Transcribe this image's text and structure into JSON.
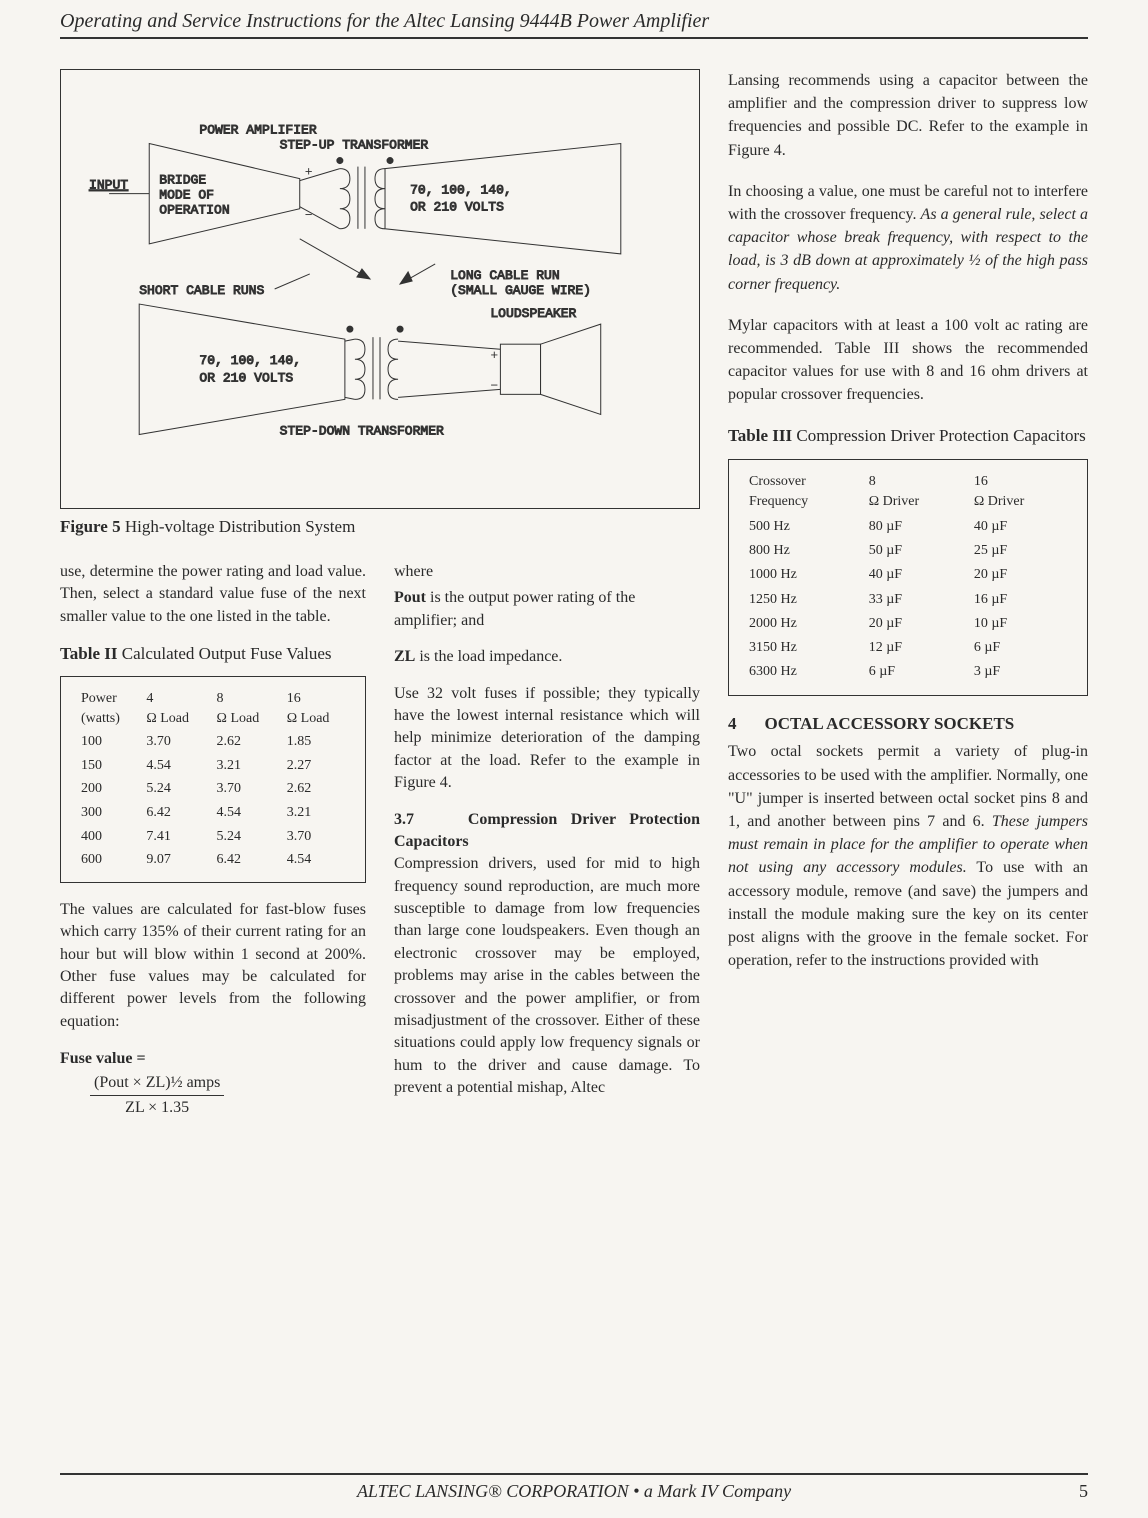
{
  "header": {
    "title": "Operating and Service Instructions for the Altec Lansing 9444B Power Amplifier"
  },
  "figure5": {
    "caption_num": "Figure 5",
    "caption_text": "High-voltage Distribution System",
    "labels": {
      "power_amplifier": "POWER AMPLIFIER",
      "step_up": "STEP-UP TRANSFORMER",
      "input": "INPUT",
      "bridge_mode": "BRIDGE MODE OF OPERATION",
      "volts_line": "70, 100, 140, OR 210 VOLTS",
      "short_cable": "SHORT CABLE RUNS",
      "long_cable": "LONG CABLE RUN (SMALL GAUGE WIRE)",
      "loudspeaker": "LOUDSPEAKER",
      "step_down": "STEP-DOWN TRANSFORMER",
      "plus": "+",
      "minus": "−"
    }
  },
  "col_left_top": {
    "p1": "use, determine the power rating and load value. Then, select a standard value fuse of the next smaller value to the one listed in the table."
  },
  "table2": {
    "title_num": "Table II",
    "title_text": "Calculated Output Fuse Values",
    "columns": [
      "Power (watts)",
      "4 Ω Load",
      "8 Ω Load",
      "16 Ω Load"
    ],
    "rows": [
      [
        "100",
        "3.70",
        "2.62",
        "1.85"
      ],
      [
        "150",
        "4.54",
        "3.21",
        "2.27"
      ],
      [
        "200",
        "5.24",
        "3.70",
        "2.62"
      ],
      [
        "300",
        "6.42",
        "4.54",
        "3.21"
      ],
      [
        "400",
        "7.41",
        "5.24",
        "3.70"
      ],
      [
        "600",
        "9.07",
        "6.42",
        "4.54"
      ]
    ]
  },
  "col_left_bot": {
    "p2": "The values are calculated for fast-blow fuses which carry 135% of their current rating for an hour but will blow within 1 second at 200%. Other fuse values may be calculated for different power levels from the following equation:",
    "eq_label": "Fuse value =",
    "eq_num": "(Pout × ZL)½ amps",
    "eq_den": "ZL × 1.35"
  },
  "col_mid": {
    "where": "where",
    "pout_def": "Pout is the output power rating of the amplifier; and",
    "zl_def": "ZL is the load impedance.",
    "p_fuses": "Use 32 volt fuses if possible; they typically have the lowest internal resistance which will help minimize deterioration of the damping factor at the load. Refer to the example in Figure 4.",
    "sec37_num": "3.7",
    "sec37_title": "Compression Driver Protection Capacitors",
    "sec37_body": "Compression drivers, used for mid to high frequency sound reproduction, are much more susceptible to damage from low frequencies than large cone loudspeakers. Even though an electronic crossover may be employed, problems may arise in the cables between the crossover and the power amplifier, or from misadjustment of the crossover. Either of these situations could apply low frequency signals or hum to the driver and cause damage. To prevent a potential mishap, Altec"
  },
  "right": {
    "p1": "Lansing recommends using a capacitor between the amplifier and the compression driver to suppress low frequencies and possible DC. Refer to the example in Figure 4.",
    "p2a": "In choosing a value, one must be careful not to interfere with the crossover frequency. ",
    "p2b_italic": "As a general rule, select a capacitor whose break frequency, with respect to the load, is 3 dB down at approximately ½ of the high pass corner frequency.",
    "p3": "Mylar capacitors with at least a 100 volt ac rating are recommended. Table III shows the recommended capacitor values for use with 8 and 16 ohm drivers at popular crossover frequencies.",
    "sec4_num": "4",
    "sec4_title": "OCTAL ACCESSORY SOCKETS",
    "sec4_body_a": "Two octal sockets permit a variety of plug-in accessories to be used with the amplifier. Normally, one \"U\" jumper is inserted between octal socket pins 8 and 1, and another between pins 7 and 6. ",
    "sec4_body_italic": "These jumpers must remain in place for the amplifier to operate when not using any accessory modules.",
    "sec4_body_b": " To use with an accessory module, remove (and save) the jumpers and install the module making sure the key on its center post aligns with the groove in the female socket. For operation, refer to the instructions provided with"
  },
  "table3": {
    "title_num": "Table III",
    "title_text": "Compression Driver Protection Capacitors",
    "columns": [
      "Crossover Frequency",
      "8 Ω Driver",
      "16 Ω Driver"
    ],
    "rows": [
      [
        "500 Hz",
        "80 µF",
        "40 µF"
      ],
      [
        "800 Hz",
        "50 µF",
        "25 µF"
      ],
      [
        "1000 Hz",
        "40 µF",
        "20 µF"
      ],
      [
        "1250 Hz",
        "33 µF",
        "16 µF"
      ],
      [
        "2000 Hz",
        "20 µF",
        "10 µF"
      ],
      [
        "3150 Hz",
        "12 µF",
        "6 µF"
      ],
      [
        "6300 Hz",
        "6 µF",
        "3 µF"
      ]
    ]
  },
  "footer": {
    "text": "ALTEC LANSING® CORPORATION • a Mark IV Company",
    "page": "5"
  }
}
